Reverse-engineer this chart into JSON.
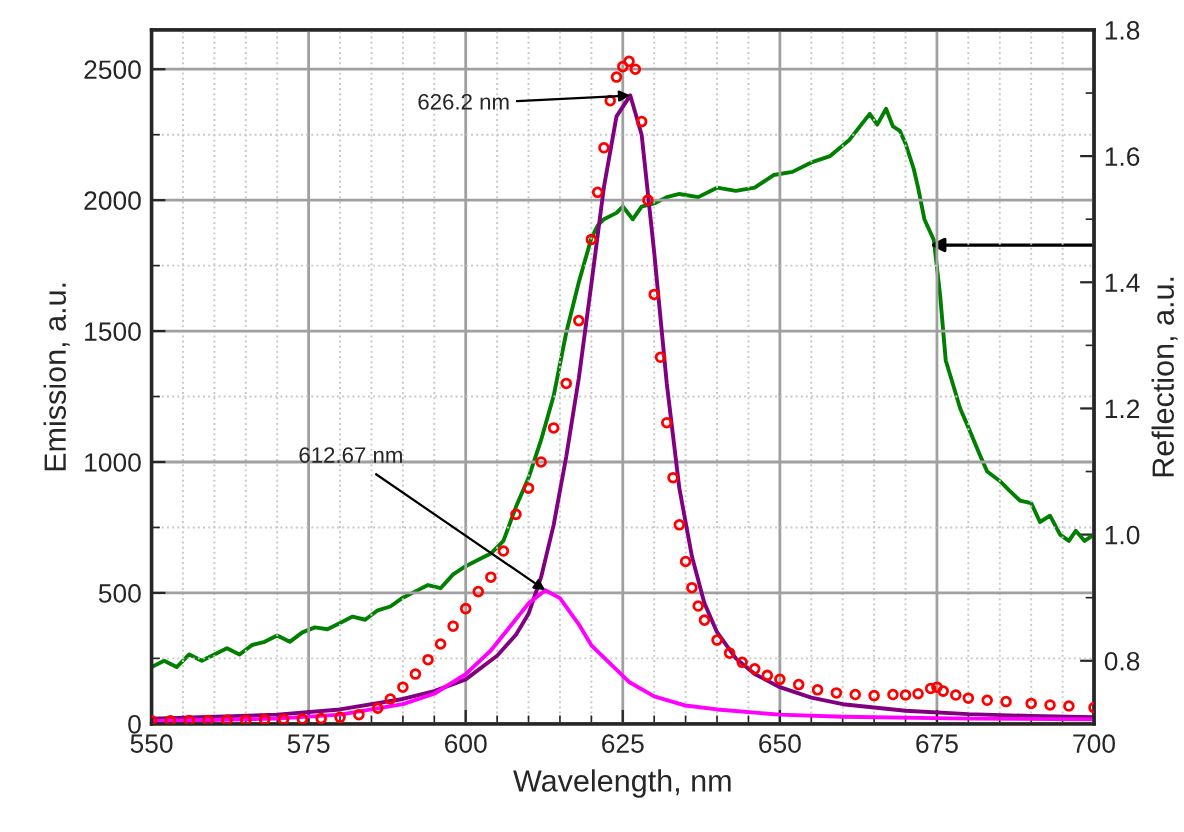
{
  "chart_data": {
    "type": "line",
    "xlabel": "Wavelength, nm",
    "ylabel": "Emission, a.u.",
    "y2label": "Reflection, a.u.",
    "xlim": [
      550,
      700
    ],
    "xticks": [
      550,
      575,
      600,
      625,
      650,
      675,
      700
    ],
    "ylim": [
      0,
      2650
    ],
    "yticks": [
      0,
      500,
      1000,
      1500,
      2000,
      2500
    ],
    "y2lim": [
      0.7,
      1.8
    ],
    "y2ticks": [
      {
        "value": 0.8,
        "label": "0.8"
      },
      {
        "value": 1.0,
        "label": "1.0"
      },
      {
        "value": 1.2,
        "label": "1.2"
      },
      {
        "value": 1.4,
        "label": "1.4"
      },
      {
        "value": 1.6,
        "label": "1.6"
      },
      {
        "value": 1.8,
        "label": "1.8"
      }
    ],
    "grid": true,
    "annotations": [
      {
        "text": "626.2 nm",
        "x": 626.2,
        "y": 2400
      },
      {
        "text": "612.67 nm",
        "x": 612.67,
        "y": 510
      }
    ],
    "series": [
      {
        "type": "scatter",
        "marker": "circle",
        "color": "#ff0000",
        "x": [
          550,
          553,
          556,
          559,
          562,
          565,
          568,
          571,
          574,
          577,
          580,
          583,
          586,
          588,
          590,
          592,
          594,
          596,
          598,
          600,
          602,
          604,
          606,
          608,
          610,
          612,
          614,
          616,
          618,
          620,
          621,
          622,
          623,
          624,
          625,
          626,
          627,
          628,
          629,
          630,
          631,
          632,
          633,
          634,
          635,
          636,
          637,
          638,
          640,
          642,
          644,
          646,
          648,
          650,
          653,
          656,
          659,
          662,
          665,
          668,
          670,
          672,
          674,
          675,
          676,
          678,
          680,
          683,
          686,
          690,
          693,
          696,
          700
        ],
        "values": [
          12,
          12,
          13,
          13,
          14,
          14,
          16,
          17,
          18,
          20,
          25,
          35,
          60,
          95,
          140,
          190,
          245,
          305,
          373,
          440,
          505,
          560,
          660,
          800,
          900,
          1000,
          1130,
          1300,
          1540,
          1850,
          2030,
          2200,
          2380,
          2470,
          2510,
          2530,
          2500,
          2300,
          2000,
          1640,
          1400,
          1150,
          940,
          760,
          620,
          520,
          450,
          396,
          320,
          270,
          235,
          210,
          185,
          170,
          150,
          130,
          118,
          112,
          108,
          112,
          110,
          115,
          135,
          140,
          125,
          110,
          98,
          90,
          85,
          78,
          72,
          68,
          62
        ]
      },
      {
        "marker": "none",
        "color": "#800080",
        "x": [
          550,
          570,
          580,
          590,
          595,
          600,
          605,
          608,
          610,
          612,
          614,
          616,
          618,
          620,
          622,
          624,
          626.2,
          628,
          630,
          632,
          634,
          636,
          638,
          640,
          643,
          646,
          650,
          655,
          660,
          670,
          680,
          690,
          700
        ],
        "values": [
          20,
          35,
          55,
          95,
          125,
          170,
          260,
          340,
          420,
          560,
          760,
          1020,
          1320,
          1680,
          2050,
          2320,
          2400,
          2250,
          1800,
          1300,
          900,
          640,
          460,
          350,
          250,
          190,
          140,
          100,
          75,
          50,
          37,
          30,
          25
        ]
      },
      {
        "marker": "none",
        "color": "#ff00ff",
        "x": [
          550,
          570,
          580,
          590,
          595,
          600,
          604,
          607,
          610,
          612.67,
          615,
          618,
          620,
          623,
          626,
          630,
          635,
          640,
          650,
          660,
          680,
          700
        ],
        "values": [
          10,
          20,
          35,
          75,
          115,
          190,
          280,
          370,
          460,
          510,
          480,
          380,
          300,
          230,
          160,
          105,
          70,
          55,
          35,
          27,
          20,
          17
        ]
      },
      {
        "marker": "none",
        "color": "#007f00",
        "axis": "y2",
        "x": [
          550,
          552,
          554,
          556,
          558,
          560,
          562,
          564,
          566,
          568,
          570,
          572,
          574,
          576,
          578,
          580,
          582,
          584,
          586,
          588,
          590,
          592,
          594,
          596,
          598,
          600,
          602,
          604,
          606,
          608,
          610,
          612,
          614,
          616,
          618,
          620,
          621,
          622,
          624,
          625,
          626.6,
          628,
          630,
          632,
          634,
          637,
          640,
          643,
          646,
          649,
          652,
          655,
          658,
          661,
          664.3,
          665.5,
          666.9,
          668,
          669.1,
          670,
          671.3,
          672,
          673,
          674.5,
          675.5,
          676.4,
          677.5,
          678.7,
          680,
          681.8,
          683,
          685,
          686.5,
          688.2,
          690,
          691.4,
          693,
          694.6,
          696,
          697.1,
          698.5,
          700
        ],
        "values": [
          0.79,
          0.8,
          0.79,
          0.81,
          0.8,
          0.81,
          0.82,
          0.81,
          0.825,
          0.83,
          0.84,
          0.83,
          0.845,
          0.853,
          0.85,
          0.86,
          0.87,
          0.865,
          0.88,
          0.886,
          0.9,
          0.91,
          0.92,
          0.915,
          0.937,
          0.95,
          0.96,
          0.97,
          0.99,
          1.044,
          1.09,
          1.15,
          1.22,
          1.32,
          1.4,
          1.47,
          1.49,
          1.5,
          1.51,
          1.52,
          1.5,
          1.52,
          1.525,
          1.535,
          1.54,
          1.535,
          1.55,
          1.545,
          1.55,
          1.57,
          1.575,
          1.59,
          1.6,
          1.625,
          1.667,
          1.65,
          1.675,
          1.647,
          1.64,
          1.62,
          1.58,
          1.55,
          1.5,
          1.467,
          1.38,
          1.276,
          1.24,
          1.2,
          1.17,
          1.127,
          1.1,
          1.085,
          1.07,
          1.054,
          1.05,
          1.02,
          1.03,
          1.0,
          0.99,
          1.006,
          0.99,
          1.0
        ]
      }
    ]
  }
}
